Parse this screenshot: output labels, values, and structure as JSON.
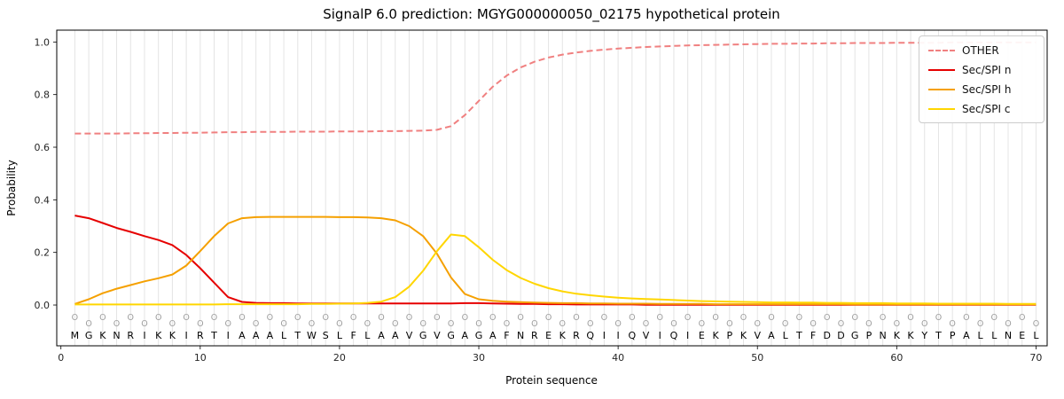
{
  "chart_data": {
    "type": "line",
    "title": "SignalP 6.0 prediction: MGYG000000050_02175 hypothetical protein",
    "xlabel": "Protein sequence",
    "ylabel": "Probability",
    "xlim": [
      -0.3,
      70.8
    ],
    "ylim": [
      -0.155,
      1.045
    ],
    "xticks": [
      0,
      10,
      20,
      30,
      40,
      50,
      60,
      70
    ],
    "yticks": [
      0.0,
      0.2,
      0.4,
      0.6,
      0.8,
      1.0
    ],
    "grid": "vertical line per residue, light gray",
    "legend_position": "upper-right",
    "sequence": "MGKNRIKKIRTIAAALTWSLFLAAVGVGAGAFNREKRQIIQVIQIEKPKVALTFDDGPNKKYTPALLNEL",
    "position_label": "O",
    "series": [
      {
        "name": "OTHER",
        "color": "#f08080",
        "dash": true,
        "values": [
          0.652,
          0.652,
          0.652,
          0.652,
          0.653,
          0.653,
          0.654,
          0.654,
          0.655,
          0.655,
          0.656,
          0.657,
          0.657,
          0.658,
          0.658,
          0.658,
          0.659,
          0.659,
          0.659,
          0.66,
          0.66,
          0.66,
          0.661,
          0.661,
          0.662,
          0.663,
          0.666,
          0.68,
          0.722,
          0.776,
          0.83,
          0.872,
          0.903,
          0.925,
          0.941,
          0.952,
          0.96,
          0.966,
          0.971,
          0.975,
          0.978,
          0.981,
          0.983,
          0.985,
          0.987,
          0.988,
          0.989,
          0.99,
          0.991,
          0.992,
          0.993,
          0.993,
          0.994,
          0.994,
          0.995,
          0.995,
          0.996,
          0.996,
          0.996,
          0.997,
          0.997,
          0.997,
          0.997,
          0.998,
          0.998,
          0.998,
          0.998,
          0.998,
          0.998,
          0.998
        ]
      },
      {
        "name": "Sec/SPI n",
        "color": "#e60000",
        "dash": false,
        "values": [
          0.34,
          0.33,
          0.312,
          0.293,
          0.278,
          0.262,
          0.247,
          0.228,
          0.19,
          0.14,
          0.085,
          0.03,
          0.012,
          0.008,
          0.007,
          0.007,
          0.006,
          0.006,
          0.006,
          0.006,
          0.006,
          0.006,
          0.006,
          0.006,
          0.006,
          0.006,
          0.006,
          0.006,
          0.007,
          0.007,
          0.006,
          0.005,
          0.004,
          0.004,
          0.003,
          0.003,
          0.002,
          0.002,
          0.002,
          0.002,
          0.002,
          0.001,
          0.001,
          0.001,
          0.001,
          0.001,
          0.001,
          0.001,
          0.001,
          0.001,
          0.001,
          0.001,
          0.001,
          0.001,
          0.001,
          0.001,
          0.001,
          0.001,
          0.001,
          0.001,
          0.001,
          0.001,
          0.001,
          0.001,
          0.001,
          0.001,
          0.001,
          0.001,
          0.001,
          0.001
        ]
      },
      {
        "name": "Sec/SPI h",
        "color": "#f5a000",
        "dash": false,
        "values": [
          0.004,
          0.022,
          0.045,
          0.062,
          0.076,
          0.09,
          0.102,
          0.116,
          0.15,
          0.205,
          0.262,
          0.31,
          0.33,
          0.334,
          0.335,
          0.335,
          0.335,
          0.335,
          0.335,
          0.334,
          0.334,
          0.333,
          0.33,
          0.322,
          0.3,
          0.262,
          0.195,
          0.105,
          0.042,
          0.022,
          0.016,
          0.013,
          0.011,
          0.009,
          0.008,
          0.007,
          0.007,
          0.006,
          0.006,
          0.005,
          0.005,
          0.005,
          0.004,
          0.004,
          0.004,
          0.004,
          0.003,
          0.003,
          0.003,
          0.003,
          0.003,
          0.003,
          0.003,
          0.003,
          0.003,
          0.003,
          0.002,
          0.002,
          0.002,
          0.002,
          0.002,
          0.002,
          0.002,
          0.002,
          0.002,
          0.002,
          0.002,
          0.002,
          0.002,
          0.002
        ]
      },
      {
        "name": "Sec/SPI c",
        "color": "#ffd600",
        "dash": false,
        "values": [
          0.002,
          0.002,
          0.002,
          0.002,
          0.002,
          0.002,
          0.002,
          0.002,
          0.002,
          0.002,
          0.002,
          0.003,
          0.003,
          0.003,
          0.003,
          0.003,
          0.003,
          0.004,
          0.004,
          0.005,
          0.006,
          0.008,
          0.013,
          0.03,
          0.07,
          0.13,
          0.205,
          0.268,
          0.262,
          0.22,
          0.172,
          0.133,
          0.103,
          0.081,
          0.064,
          0.052,
          0.043,
          0.037,
          0.032,
          0.028,
          0.025,
          0.023,
          0.021,
          0.019,
          0.017,
          0.015,
          0.014,
          0.013,
          0.012,
          0.011,
          0.01,
          0.01,
          0.009,
          0.009,
          0.008,
          0.008,
          0.007,
          0.007,
          0.007,
          0.006,
          0.006,
          0.006,
          0.005,
          0.005,
          0.005,
          0.005,
          0.005,
          0.004,
          0.004,
          0.004
        ]
      }
    ]
  }
}
